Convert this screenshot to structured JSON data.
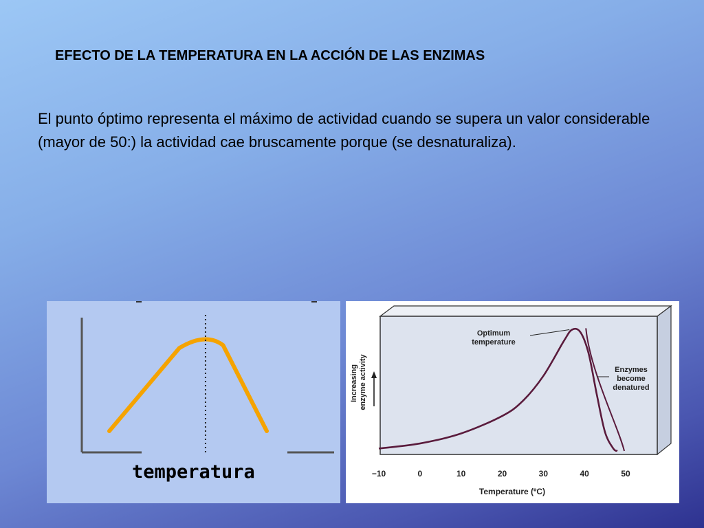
{
  "slide": {
    "title": "EFECTO DE LA TEMPERATURA EN LA ACCIÓN DE LAS ENZIMAS",
    "body": "El punto óptimo representa el máximo de actividad cuando se supera un valor considerable (mayor de 50:) la actividad cae bruscamente porque (se desnaturaliza)."
  },
  "colors": {
    "left_curve": "#f5a300",
    "right_curve": "#5a1b3c",
    "right_panel_fill": "#dde3ee",
    "axis": "#555555"
  },
  "chart_data": [
    {
      "type": "line",
      "title": "",
      "xlabel": "temperatura",
      "ylabel": "",
      "grid": false,
      "x": [
        0,
        4,
        5.5,
        6.5,
        9
      ],
      "series": [
        {
          "values": [
            0.0,
            0.85,
            1.0,
            0.88,
            0.0
          ]
        }
      ],
      "optimum_marker": {
        "x": 5.5,
        "style": "dotted vertical line"
      }
    },
    {
      "type": "line",
      "title": "",
      "xlabel": "Temperature (ºC)",
      "ylabel": "Increasing enzyme activity",
      "xticks": [
        "−10",
        "0",
        "10",
        "20",
        "30",
        "40",
        "50"
      ],
      "xlim": [
        -10,
        50
      ],
      "ylim": [
        0,
        1
      ],
      "grid": false,
      "x": [
        -10,
        0,
        10,
        20,
        25,
        30,
        35,
        37,
        39,
        41,
        43,
        45,
        47,
        48
      ],
      "series": [
        {
          "values": [
            0.02,
            0.06,
            0.14,
            0.28,
            0.4,
            0.6,
            0.88,
            0.97,
            0.95,
            0.78,
            0.45,
            0.15,
            0.02,
            0.0
          ]
        }
      ],
      "annotations": [
        {
          "text": "Optimum\ntemperature",
          "x": 37,
          "y": 0.97
        },
        {
          "text": "Enzymes\nbecome\ndenatured",
          "x": 44,
          "y": 0.6
        }
      ]
    }
  ]
}
